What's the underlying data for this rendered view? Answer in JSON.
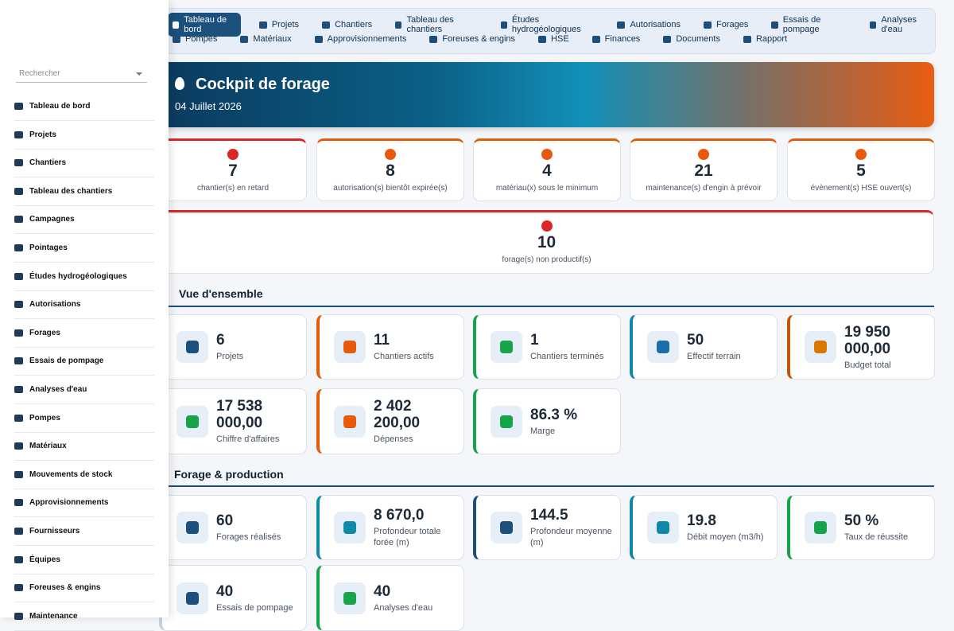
{
  "sidebar": {
    "search_placeholder": "Rechercher",
    "items": [
      "Tableau de bord",
      "Projets",
      "Chantiers",
      "Tableau des chantiers",
      "Campagnes",
      "Pointages",
      "Études hydrogéologiques",
      "Autorisations",
      "Forages",
      "Essais de pompage",
      "Analyses d'eau",
      "Pompes",
      "Matériaux",
      "Mouvements de stock",
      "Approvisionnements",
      "Fournisseurs",
      "Équipes",
      "Foreuses & engins",
      "Maintenance"
    ]
  },
  "nav": {
    "rows": [
      [
        "Tableau de bord",
        "Projets",
        "Chantiers",
        "Tableau des chantiers",
        "Études hydrogéologiques",
        "Autorisations",
        "Forages",
        "Essais de pompage",
        "Analyses d'eau"
      ],
      [
        "Pompes",
        "Matériaux",
        "Approvisionnements",
        "Foreuses & engins",
        "HSE",
        "Finances",
        "Documents",
        "Rapport"
      ]
    ]
  },
  "hero": {
    "title": "Cockpit de forage",
    "date": "04 Juillet 2026"
  },
  "alerts": [
    {
      "value": 7,
      "label": "chantier(s) en retard"
    },
    {
      "value": 8,
      "label": "autorisation(s) bientôt expirée(s)"
    },
    {
      "value": 4,
      "label": "matériau(x) sous le minimum"
    },
    {
      "value": 21,
      "label": "maintenance(s) d'engin à prévoir"
    },
    {
      "value": 5,
      "label": "évènement(s) HSE ouvert(s)"
    },
    {
      "value": 10,
      "label": "forage(s) non productif(s)"
    }
  ],
  "overview": {
    "title": "Vue d'ensemble",
    "cards": [
      {
        "value": 6,
        "label": "Projets"
      },
      {
        "value": 11,
        "label": "Chantiers actifs"
      },
      {
        "value": 1,
        "label": "Chantiers terminés"
      },
      {
        "value": 50,
        "label": "Effectif terrain"
      },
      {
        "value": "19 950 000,00",
        "label": "Budget total"
      },
      {
        "value": "17 538 000,00",
        "label": "Chiffre d'affaires"
      },
      {
        "value": "2 402 200,00",
        "label": "Dépenses"
      },
      {
        "value": "86.3 %",
        "label": "Marge"
      }
    ]
  },
  "production": {
    "title": "Forage & production",
    "cards": [
      {
        "value": 60,
        "label": "Forages réalisés"
      },
      {
        "value": "8 670,0",
        "label": "Profondeur totale forée (m)"
      },
      {
        "value": 144.5,
        "label": "Profondeur moyenne (m)"
      },
      {
        "value": 19.8,
        "label": "Débit moyen (m3/h)"
      },
      {
        "value": "50 %",
        "label": "Taux de réussite"
      },
      {
        "value": 40,
        "label": "Essais de pompage"
      },
      {
        "value": 40,
        "label": "Analyses d'eau"
      }
    ]
  }
}
